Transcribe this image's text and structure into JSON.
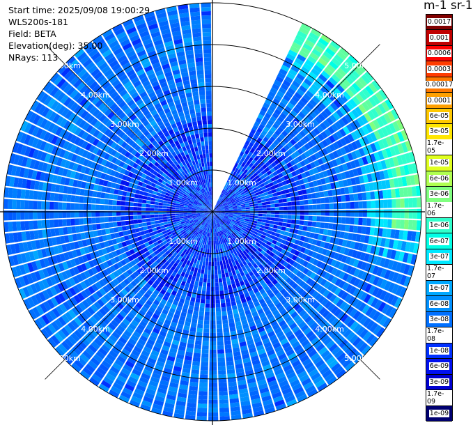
{
  "info": {
    "start_time": "Start time: 2025/09/08 19:00:29",
    "instrument": "WLS200s-181",
    "field": "Field: BETA",
    "elevation": "Elevation(deg): 35.00",
    "nrays": "NRays: 113"
  },
  "colorbar": {
    "title": "m-1 sr-1",
    "labels": [
      "0.0017",
      "0.001",
      "0.0006",
      "0.0003",
      "0.00017",
      "0.0001",
      "6e-05",
      "3e-05",
      "1.7e-05",
      "1e-05",
      "6e-06",
      "3e-06",
      "1.7e-06",
      "1e-06",
      "6e-07",
      "3e-07",
      "1.7e-07",
      "1e-07",
      "6e-08",
      "3e-08",
      "1.7e-08",
      "1e-08",
      "6e-09",
      "3e-09",
      "1.7e-09",
      "1e-09"
    ],
    "colors": [
      "#800000",
      "#c00000",
      "#ff0000",
      "#ff3c00",
      "#ff7800",
      "#ffa000",
      "#ffc800",
      "#ffe600",
      "#fff000",
      "#e0ff20",
      "#b0ff50",
      "#80ff80",
      "#60ffa0",
      "#30ffcc",
      "#00ffe6",
      "#00e8ff",
      "#00c8ff",
      "#00a8ff",
      "#0090ff",
      "#0070ff",
      "#0050ff",
      "#0030ff",
      "#0010f0",
      "#0000d0",
      "#0000a0",
      "#000070"
    ]
  },
  "chart_data": {
    "type": "ppi",
    "title": "",
    "field": "BETA",
    "elevation_deg": 35.0,
    "n_rays": 113,
    "range_ring_labels": [
      "1.00km",
      "2.00km",
      "3.00km",
      "4.00km",
      "5.00km"
    ],
    "range_rings_km": [
      1,
      2,
      3,
      4,
      5
    ],
    "max_range_km": 5.0,
    "scan_gap_azimuth_deg": [
      0,
      26
    ],
    "dominant_value_m-1_sr-1": "3e-08",
    "enhanced_region": {
      "azimuth_deg": [
        10,
        95
      ],
      "range_km": [
        4.3,
        5.0
      ],
      "value_m-1_sr-1": "1.7e-06"
    }
  }
}
